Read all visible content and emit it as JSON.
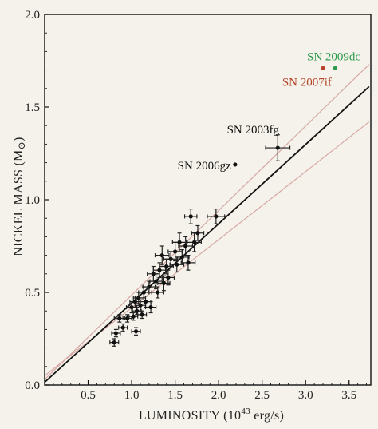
{
  "chart_data": {
    "type": "scatter",
    "title": "",
    "xlabel": "LUMINOSITY (10",
    "xlabel_sup": "43",
    "xlabel_unit": " erg/s)",
    "ylabel": "NICKEL MASS (M",
    "ylabel_sub": "⊙",
    "ylabel_end": ")",
    "xlim": [
      0.0,
      3.75
    ],
    "ylim": [
      0.0,
      2.0
    ],
    "x_ticks": [
      0.5,
      1.0,
      1.5,
      2.0,
      2.5,
      3.0,
      3.5
    ],
    "x_tick_labels": [
      "0.5",
      "1.0",
      "1.5",
      "2.0",
      "2.5",
      "3.0",
      "3.5"
    ],
    "y_ticks": [
      0.0,
      0.5,
      1.0,
      1.5,
      2.0
    ],
    "y_tick_labels": [
      "0.0",
      "0.5",
      "1.0",
      "1.5",
      "2.0"
    ],
    "grid": false,
    "fit_line": {
      "x": [
        0.0,
        3.73
      ],
      "y": [
        0.015,
        1.61
      ],
      "color": "#111111"
    },
    "bound_lines": [
      {
        "x": [
          0.0,
          3.73
        ],
        "y": [
          0.03,
          1.73
        ],
        "color": "#d8a7a3"
      },
      {
        "x": [
          0.0,
          3.73
        ],
        "y": [
          0.05,
          1.42
        ],
        "color": "#d8a7a3"
      }
    ],
    "points": [
      {
        "x": 0.8,
        "y": 0.23,
        "xerr": 0.05,
        "yerr": 0.02
      },
      {
        "x": 0.82,
        "y": 0.28,
        "xerr": 0.05,
        "yerr": 0.02
      },
      {
        "x": 0.86,
        "y": 0.36,
        "xerr": 0.06,
        "yerr": 0.02
      },
      {
        "x": 0.9,
        "y": 0.31,
        "xerr": 0.05,
        "yerr": 0.02
      },
      {
        "x": 0.95,
        "y": 0.36,
        "xerr": 0.05,
        "yerr": 0.02
      },
      {
        "x": 1.0,
        "y": 0.42,
        "xerr": 0.06,
        "yerr": 0.03
      },
      {
        "x": 1.02,
        "y": 0.37,
        "xerr": 0.05,
        "yerr": 0.02
      },
      {
        "x": 1.04,
        "y": 0.45,
        "xerr": 0.06,
        "yerr": 0.03
      },
      {
        "x": 1.05,
        "y": 0.29,
        "xerr": 0.05,
        "yerr": 0.02
      },
      {
        "x": 1.06,
        "y": 0.4,
        "xerr": 0.05,
        "yerr": 0.02
      },
      {
        "x": 1.08,
        "y": 0.47,
        "xerr": 0.06,
        "yerr": 0.03
      },
      {
        "x": 1.1,
        "y": 0.43,
        "xerr": 0.06,
        "yerr": 0.03
      },
      {
        "x": 1.12,
        "y": 0.38,
        "xerr": 0.05,
        "yerr": 0.02
      },
      {
        "x": 1.14,
        "y": 0.5,
        "xerr": 0.06,
        "yerr": 0.03
      },
      {
        "x": 1.16,
        "y": 0.45,
        "xerr": 0.06,
        "yerr": 0.03
      },
      {
        "x": 1.2,
        "y": 0.53,
        "xerr": 0.07,
        "yerr": 0.03
      },
      {
        "x": 1.22,
        "y": 0.42,
        "xerr": 0.06,
        "yerr": 0.03
      },
      {
        "x": 1.25,
        "y": 0.6,
        "xerr": 0.07,
        "yerr": 0.04
      },
      {
        "x": 1.28,
        "y": 0.56,
        "xerr": 0.07,
        "yerr": 0.04
      },
      {
        "x": 1.3,
        "y": 0.5,
        "xerr": 0.07,
        "yerr": 0.03
      },
      {
        "x": 1.32,
        "y": 0.62,
        "xerr": 0.07,
        "yerr": 0.04
      },
      {
        "x": 1.35,
        "y": 0.7,
        "xerr": 0.08,
        "yerr": 0.05
      },
      {
        "x": 1.37,
        "y": 0.55,
        "xerr": 0.07,
        "yerr": 0.04
      },
      {
        "x": 1.4,
        "y": 0.64,
        "xerr": 0.08,
        "yerr": 0.04
      },
      {
        "x": 1.42,
        "y": 0.58,
        "xerr": 0.07,
        "yerr": 0.04
      },
      {
        "x": 1.45,
        "y": 0.68,
        "xerr": 0.08,
        "yerr": 0.04
      },
      {
        "x": 1.5,
        "y": 0.72,
        "xerr": 0.08,
        "yerr": 0.05
      },
      {
        "x": 1.52,
        "y": 0.65,
        "xerr": 0.08,
        "yerr": 0.04
      },
      {
        "x": 1.55,
        "y": 0.77,
        "xerr": 0.08,
        "yerr": 0.05
      },
      {
        "x": 1.58,
        "y": 0.69,
        "xerr": 0.08,
        "yerr": 0.04
      },
      {
        "x": 1.62,
        "y": 0.75,
        "xerr": 0.08,
        "yerr": 0.05
      },
      {
        "x": 1.65,
        "y": 0.66,
        "xerr": 0.08,
        "yerr": 0.04
      },
      {
        "x": 1.68,
        "y": 0.91,
        "xerr": 0.07,
        "yerr": 0.04
      },
      {
        "x": 1.72,
        "y": 0.77,
        "xerr": 0.08,
        "yerr": 0.05
      },
      {
        "x": 1.76,
        "y": 0.82,
        "xerr": 0.07,
        "yerr": 0.04
      },
      {
        "x": 1.97,
        "y": 0.91,
        "xerr": 0.1,
        "yerr": 0.04
      },
      {
        "x": 2.68,
        "y": 1.28,
        "xerr": 0.14,
        "yerr": 0.07
      }
    ],
    "annotations": [
      {
        "text": "SN 2003fg",
        "x": 2.65,
        "y": 1.34,
        "color": "#111111",
        "dot": false
      },
      {
        "text": "SN 2006gz",
        "x": 2.18,
        "y": 1.19,
        "color": "#111111",
        "dot": true,
        "dot_x": 2.19,
        "dot_y": 1.19
      },
      {
        "text": "SN 2009dc",
        "x": 3.32,
        "y": 1.71,
        "color": "#2a9a4a",
        "dot": true,
        "dot_x": 3.34,
        "dot_y": 1.71
      },
      {
        "text": "SN 2007if",
        "x": 3.19,
        "y": 1.71,
        "color": "#b5432a",
        "dot": true,
        "dot_x": 3.2,
        "dot_y": 1.71
      }
    ]
  }
}
